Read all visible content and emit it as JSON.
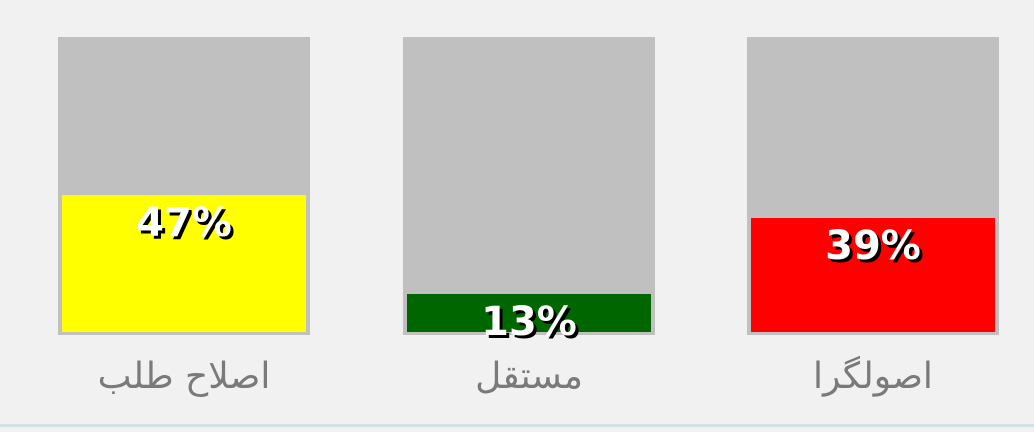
{
  "candidates": [
    {
      "label": "اصلاح طلب",
      "percent": 47,
      "percent_text": "47%",
      "color": "#ffff00"
    },
    {
      "label": "مستقل",
      "percent": 13,
      "percent_text": "13%",
      "color": "#006600"
    },
    {
      "label": "اصولگرا",
      "percent": 39,
      "percent_text": "39%",
      "color": "#ff0000"
    }
  ],
  "track_color": "#c0c0c0"
}
